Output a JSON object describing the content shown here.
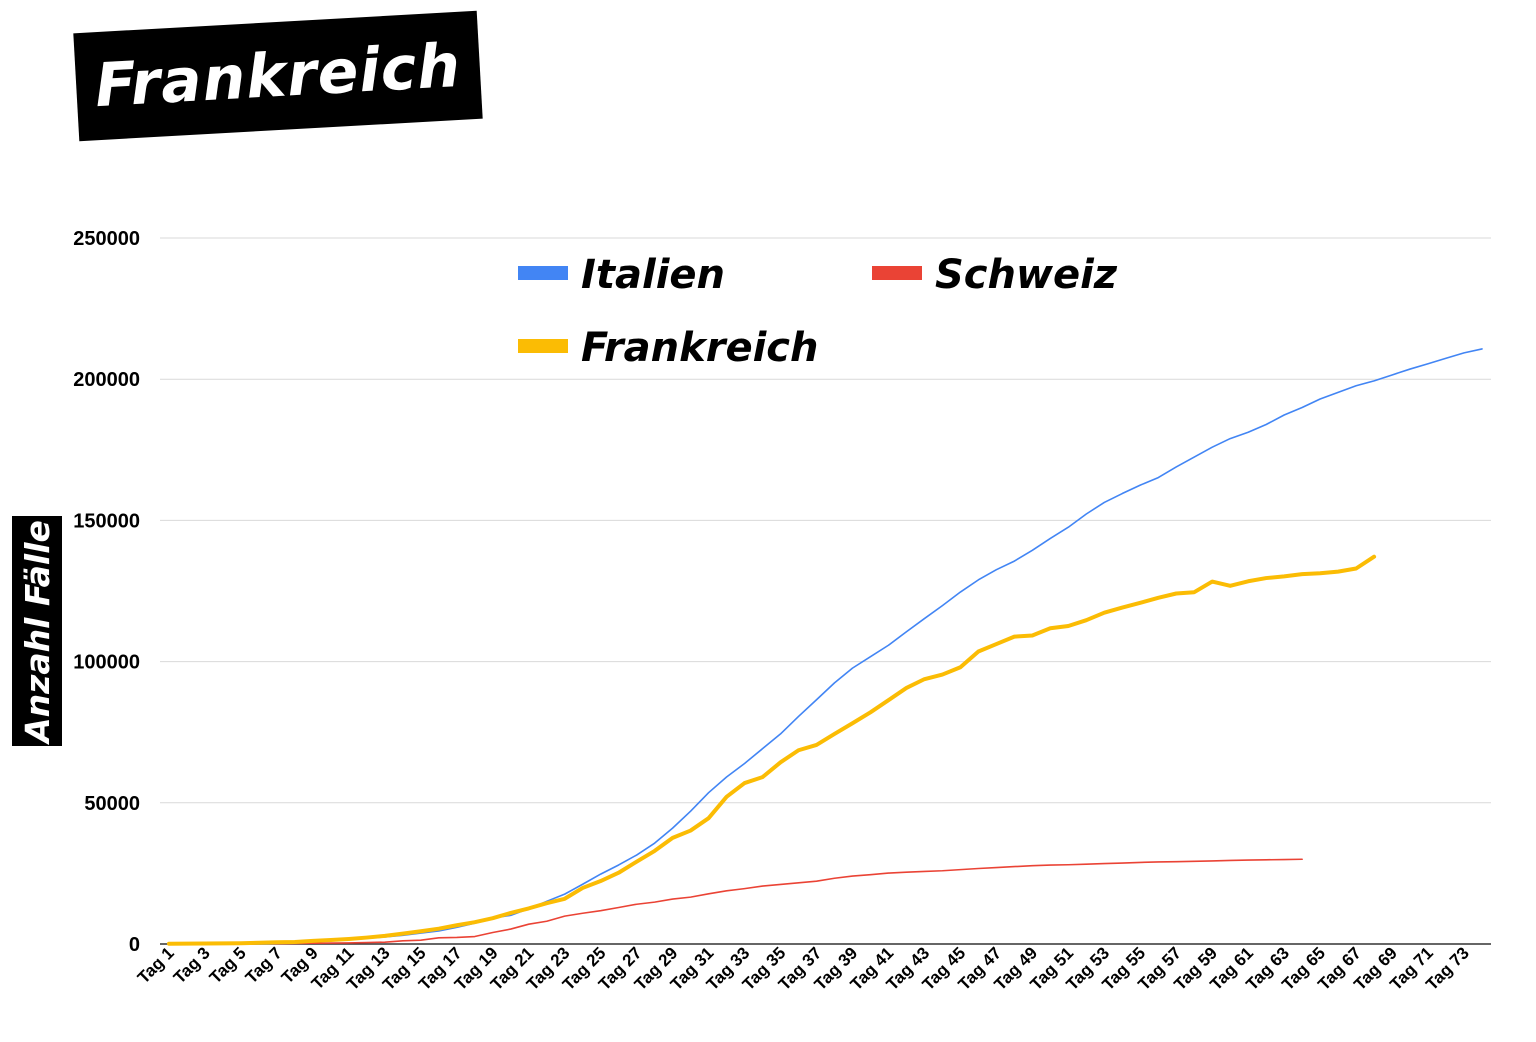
{
  "chart_data": {
    "type": "line",
    "title": "Frankreich",
    "ylabel": "Anzahl Fälle",
    "xlabel": "",
    "ylim": [
      0,
      250000
    ],
    "yticks": [
      0,
      50000,
      100000,
      150000,
      200000,
      250000
    ],
    "ytick_labels": [
      "0",
      "50000",
      "100000",
      "150000",
      "200000",
      "250000"
    ],
    "x_categories": [
      "Tag 1",
      "Tag 2",
      "Tag 3",
      "Tag 4",
      "Tag 5",
      "Tag 6",
      "Tag 7",
      "Tag 8",
      "Tag 9",
      "Tag 10",
      "Tag 11",
      "Tag 12",
      "Tag 13",
      "Tag 14",
      "Tag 15",
      "Tag 16",
      "Tag 17",
      "Tag 18",
      "Tag 19",
      "Tag 20",
      "Tag 21",
      "Tag 22",
      "Tag 23",
      "Tag 24",
      "Tag 25",
      "Tag 26",
      "Tag 27",
      "Tag 28",
      "Tag 29",
      "Tag 30",
      "Tag 31",
      "Tag 32",
      "Tag 33",
      "Tag 34",
      "Tag 35",
      "Tag 36",
      "Tag 37",
      "Tag 38",
      "Tag 39",
      "Tag 40",
      "Tag 41",
      "Tag 42",
      "Tag 43",
      "Tag 44",
      "Tag 45",
      "Tag 46",
      "Tag 47",
      "Tag 48",
      "Tag 49",
      "Tag 50",
      "Tag 51",
      "Tag 52",
      "Tag 53",
      "Tag 54",
      "Tag 55",
      "Tag 56",
      "Tag 57",
      "Tag 58",
      "Tag 59",
      "Tag 60",
      "Tag 61",
      "Tag 62",
      "Tag 63",
      "Tag 64",
      "Tag 65",
      "Tag 66",
      "Tag 67",
      "Tag 68",
      "Tag 69",
      "Tag 70",
      "Tag 71",
      "Tag 72",
      "Tag 73",
      "Tag 74"
    ],
    "x_tick_labels": [
      "Tag 1",
      "Tag 3",
      "Tag 5",
      "Tag 7",
      "Tag 9",
      "Tag 11",
      "Tag 13",
      "Tag 15",
      "Tag 17",
      "Tag 19",
      "Tag 21",
      "Tag 23",
      "Tag 25",
      "Tag 27",
      "Tag 29",
      "Tag 31",
      "Tag 33",
      "Tag 35",
      "Tag 37",
      "Tag 39",
      "Tag 41",
      "Tag 43",
      "Tag 45",
      "Tag 47",
      "Tag 49",
      "Tag 51",
      "Tag 53",
      "Tag 55",
      "Tag 57",
      "Tag 59",
      "Tag 61",
      "Tag 63",
      "Tag 65",
      "Tag 67",
      "Tag 69",
      "Tag 71",
      "Tag 73"
    ],
    "grid": true,
    "legend_position": "top-center",
    "series": [
      {
        "name": "Italien",
        "color": "#4285f4",
        "values": [
          3,
          20,
          79,
          150,
          227,
          320,
          445,
          650,
          888,
          1128,
          1694,
          2036,
          2502,
          3089,
          3858,
          4636,
          5883,
          7375,
          9172,
          10149,
          12462,
          15113,
          17660,
          21157,
          24747,
          27980,
          31506,
          35713,
          41035,
          47021,
          53578,
          59138,
          63927,
          69176,
          74386,
          80589,
          86498,
          92472,
          97689,
          101739,
          105792,
          110574,
          115242,
          119827,
          124632,
          128948,
          132547,
          135586,
          139422,
          143626,
          147577,
          152271,
          156363,
          159516,
          162488,
          165155,
          168941,
          172434,
          175925,
          178972,
          181228,
          183957,
          187327,
          189973,
          192994,
          195351,
          197675,
          199414,
          201505,
          203591,
          205463,
          207428,
          209328,
          210717
        ]
      },
      {
        "name": "Frankreich",
        "color": "#fbbc04",
        "values": [
          100,
          130,
          178,
          212,
          285,
          420,
          613,
          716,
          1126,
          1412,
          1784,
          2281,
          2876,
          3661,
          4499,
          5423,
          6633,
          7730,
          9134,
          10995,
          12612,
          14459,
          16018,
          19856,
          22304,
          25233,
          29155,
          32964,
          37575,
          40174,
          44550,
          52128,
          56989,
          59105,
          64338,
          68605,
          70478,
          74390,
          78167,
          82048,
          86334,
          90676,
          93790,
          95403,
          98010,
          103573,
          106206,
          108847,
          109252,
          111821,
          112606,
          114657,
          117324,
          119151,
          120804,
          122577,
          124114,
          124575,
          128339,
          126835,
          128442,
          129581,
          130185,
          130979,
          131287,
          131863,
          132967,
          137150
        ]
      },
      {
        "name": "Schweiz",
        "color": "#ea4335",
        "values": [
          10,
          18,
          27,
          42,
          56,
          90,
          114,
          214,
          268,
          337,
          374,
          491,
          652,
          1125,
          1359,
          2200,
          2330,
          2650,
          4075,
          5294,
          7014,
          8060,
          9877,
          10897,
          11811,
          12928,
          14076,
          14829,
          15922,
          16605,
          17768,
          18827,
          19606,
          20505,
          21100,
          21657,
          22253,
          23280,
          24051,
          24551,
          25107,
          25415,
          25688,
          25936,
          26336,
          26732,
          27078,
          27404,
          27740,
          27944,
          28063,
          28268,
          28496,
          28677,
          28894,
          29061,
          29164,
          29264,
          29407,
          29586,
          29705,
          29817,
          29905,
          30009
        ]
      }
    ]
  }
}
